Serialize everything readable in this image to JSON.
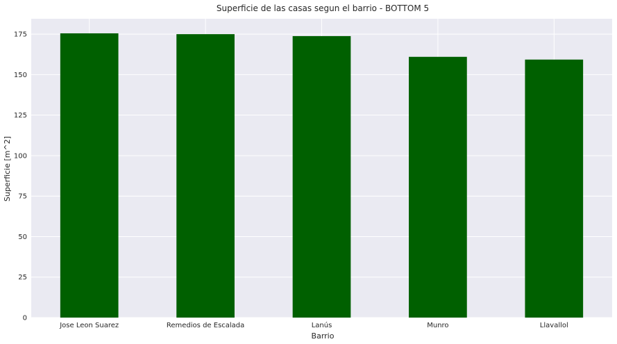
{
  "chart_data": {
    "type": "bar",
    "title": "Superficie de las casas segun el barrio - BOTTOM 5",
    "xlabel": "Barrio",
    "ylabel": "Superficie [m^2]",
    "categories": [
      "Jose Leon Suarez",
      "Remedios de Escalada",
      "Lanús",
      "Munro",
      "Llavallol"
    ],
    "values": [
      175.5,
      175.0,
      173.8,
      161.0,
      159.3
    ],
    "ylim": [
      0,
      184.5
    ],
    "yticks": [
      0,
      25,
      50,
      75,
      100,
      125,
      150,
      175
    ],
    "grid": true,
    "legend": "none",
    "colors": {
      "bar": "#006000",
      "plot_background": "#eaeaf2",
      "grid": "#ffffff",
      "text": "#262626"
    }
  }
}
